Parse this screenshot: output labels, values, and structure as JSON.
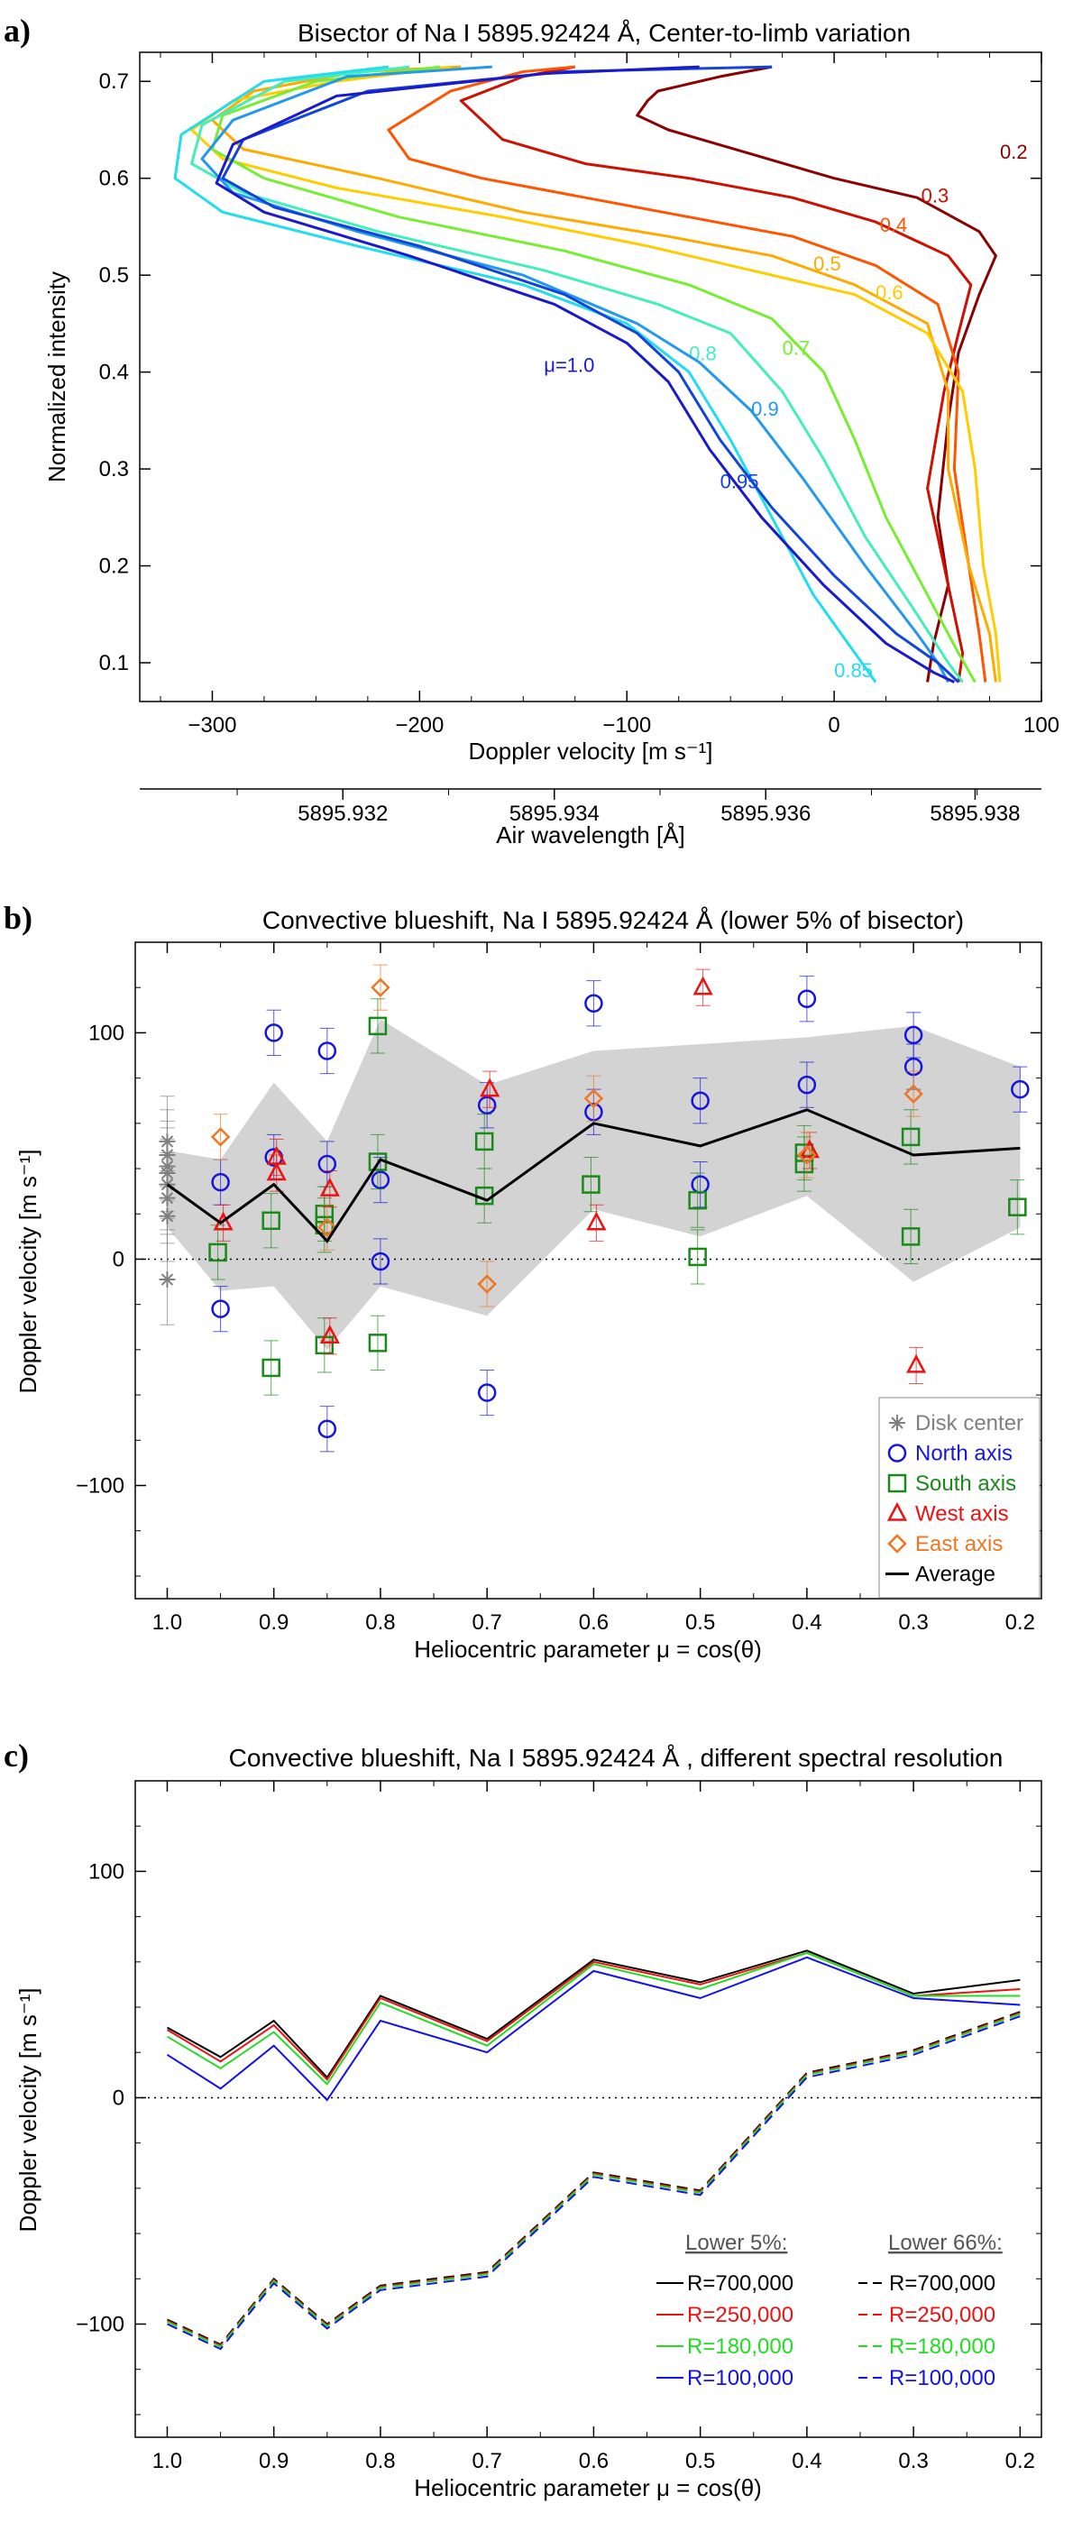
{
  "panels": {
    "a_label": "a)",
    "b_label": "b)",
    "c_label": "c)"
  },
  "chart_data": [
    {
      "id": "a",
      "type": "line",
      "title": "Bisector of Na I 5895.92424 Å, Center-to-limb variation",
      "xlabel": "Doppler velocity [m s⁻¹]",
      "ylabel": "Normalized intensity",
      "x2label": "Air wavelength [Å]",
      "xlim": [
        -335,
        100
      ],
      "ylim": [
        0.06,
        0.73
      ],
      "xticks": [
        -300,
        -200,
        -100,
        0,
        100
      ],
      "xtick_labels": [
        "−300",
        "−200",
        "−100",
        "0",
        "100"
      ],
      "yticks": [
        0.1,
        0.2,
        0.3,
        0.4,
        0.5,
        0.6,
        0.7
      ],
      "ytick_labels": [
        "0.1",
        "0.2",
        "0.3",
        "0.4",
        "0.5",
        "0.6",
        "0.7"
      ],
      "x2ticks": [
        -237,
        -135,
        -33,
        68
      ],
      "x2tick_labels": [
        "5895.932",
        "5895.934",
        "5895.936",
        "5895.938"
      ],
      "series": [
        {
          "name": "0.2",
          "color": "#8b0000",
          "label_at": [
            80,
            0.62
          ],
          "x": [
            -30,
            -55,
            -85,
            -90,
            -95,
            -80,
            -40,
            0,
            40,
            70,
            78,
            70,
            60,
            55,
            50,
            55,
            48,
            45
          ],
          "y": [
            0.715,
            0.705,
            0.69,
            0.68,
            0.665,
            0.65,
            0.625,
            0.6,
            0.58,
            0.545,
            0.52,
            0.48,
            0.42,
            0.35,
            0.25,
            0.18,
            0.12,
            0.08
          ]
        },
        {
          "name": "0.3",
          "color": "#cc1100",
          "label_at": [
            42,
            0.575
          ],
          "x": [
            -125,
            -150,
            -180,
            -160,
            -120,
            -70,
            -20,
            20,
            55,
            66,
            60,
            53,
            45,
            55,
            62,
            60
          ],
          "y": [
            0.715,
            0.705,
            0.68,
            0.64,
            0.615,
            0.6,
            0.58,
            0.555,
            0.52,
            0.49,
            0.44,
            0.38,
            0.28,
            0.18,
            0.11,
            0.08
          ]
        },
        {
          "name": "0.4",
          "color": "#ff5500",
          "label_at": [
            22,
            0.545
          ],
          "x": [
            -125,
            -150,
            -185,
            -215,
            -205,
            -170,
            -120,
            -70,
            -20,
            20,
            50,
            60,
            58,
            65,
            70,
            73
          ],
          "y": [
            0.715,
            0.71,
            0.69,
            0.65,
            0.62,
            0.6,
            0.58,
            0.56,
            0.54,
            0.51,
            0.47,
            0.4,
            0.3,
            0.2,
            0.13,
            0.08
          ]
        },
        {
          "name": "0.5",
          "color": "#ffaa00",
          "label_at": [
            -10,
            0.505
          ],
          "x": [
            -180,
            -230,
            -280,
            -300,
            -285,
            -220,
            -150,
            -80,
            -30,
            10,
            45,
            55,
            55,
            65,
            75,
            78
          ],
          "y": [
            0.715,
            0.71,
            0.69,
            0.66,
            0.63,
            0.6,
            0.565,
            0.54,
            0.52,
            0.49,
            0.45,
            0.38,
            0.3,
            0.2,
            0.13,
            0.08
          ]
        },
        {
          "name": "0.6",
          "color": "#ffcc00",
          "label_at": [
            20,
            0.475
          ],
          "x": [
            -185,
            -240,
            -290,
            -310,
            -295,
            -240,
            -160,
            -90,
            -40,
            10,
            45,
            62,
            68,
            72,
            78,
            80
          ],
          "y": [
            0.715,
            0.7,
            0.68,
            0.65,
            0.62,
            0.59,
            0.56,
            0.53,
            0.505,
            0.48,
            0.44,
            0.38,
            0.3,
            0.2,
            0.13,
            0.08
          ]
        },
        {
          "name": "0.7",
          "color": "#77ee33",
          "label_at": [
            -25,
            0.418
          ],
          "x": [
            -190,
            -250,
            -295,
            -300,
            -275,
            -210,
            -130,
            -70,
            -30,
            -5,
            10,
            25,
            45,
            60,
            68
          ],
          "y": [
            0.715,
            0.7,
            0.665,
            0.63,
            0.6,
            0.56,
            0.525,
            0.49,
            0.455,
            0.4,
            0.33,
            0.25,
            0.17,
            0.11,
            0.08
          ]
        },
        {
          "name": "0.8",
          "color": "#44eebb",
          "label_at": [
            -70,
            0.412
          ],
          "x": [
            -205,
            -265,
            -305,
            -310,
            -285,
            -220,
            -140,
            -85,
            -50,
            -25,
            -5,
            15,
            40,
            55,
            62
          ],
          "y": [
            0.715,
            0.7,
            0.655,
            0.615,
            0.585,
            0.545,
            0.505,
            0.47,
            0.44,
            0.38,
            0.31,
            0.23,
            0.15,
            0.1,
            0.08
          ]
        },
        {
          "name": "0.85",
          "color": "#22ddee",
          "label_at": [
            0,
            0.085
          ],
          "x": [
            -215,
            -275,
            -315,
            -318,
            -295,
            -230,
            -150,
            -100,
            -70,
            -50,
            -30,
            -10,
            10,
            20
          ],
          "y": [
            0.715,
            0.7,
            0.645,
            0.6,
            0.565,
            0.53,
            0.49,
            0.45,
            0.4,
            0.33,
            0.25,
            0.17,
            0.11,
            0.08
          ]
        },
        {
          "name": "0.9",
          "color": "#2299ee",
          "label_at": [
            -40,
            0.355
          ],
          "x": [
            -165,
            -235,
            -290,
            -305,
            -290,
            -230,
            -150,
            -95,
            -65,
            -40,
            -15,
            15,
            40,
            50,
            55
          ],
          "y": [
            0.715,
            0.705,
            0.66,
            0.62,
            0.585,
            0.545,
            0.5,
            0.45,
            0.41,
            0.36,
            0.29,
            0.2,
            0.13,
            0.1,
            0.08
          ]
        },
        {
          "name": "0.95",
          "color": "#1144dd",
          "label_at": [
            -55,
            0.28
          ],
          "x": [
            -30,
            -130,
            -225,
            -285,
            -295,
            -270,
            -200,
            -130,
            -95,
            -75,
            -55,
            -30,
            0,
            30,
            50,
            60
          ],
          "y": [
            0.715,
            0.71,
            0.69,
            0.64,
            0.6,
            0.57,
            0.53,
            0.48,
            0.44,
            0.4,
            0.33,
            0.26,
            0.19,
            0.13,
            0.1,
            0.08
          ]
        },
        {
          "name": "μ=1.0",
          "color": "#1a1acc",
          "label_at": [
            -140,
            0.4
          ],
          "x": [
            -65,
            -140,
            -240,
            -290,
            -298,
            -275,
            -205,
            -135,
            -100,
            -80,
            -60,
            -35,
            -5,
            25,
            48,
            58
          ],
          "y": [
            0.715,
            0.708,
            0.685,
            0.635,
            0.595,
            0.565,
            0.52,
            0.47,
            0.43,
            0.39,
            0.32,
            0.25,
            0.18,
            0.12,
            0.09,
            0.08
          ]
        }
      ]
    },
    {
      "id": "b",
      "type": "scatter",
      "title": "Convective blueshift, Na I 5895.92424 Å (lower 5% of bisector)",
      "xlabel": "Heliocentric parameter μ = cos(θ)",
      "ylabel": "Doppler velocity [m s⁻¹]",
      "xlim": [
        1.03,
        0.18
      ],
      "ylim": [
        -150,
        140
      ],
      "xticks": [
        1.0,
        0.9,
        0.8,
        0.7,
        0.6,
        0.5,
        0.4,
        0.3,
        0.2
      ],
      "xtick_labels": [
        "1.0",
        "0.9",
        "0.8",
        "0.7",
        "0.6",
        "0.5",
        "0.4",
        "0.3",
        "0.2"
      ],
      "yticks": [
        -100,
        0,
        100
      ],
      "ytick_labels": [
        "−100",
        "0",
        "100"
      ],
      "band": {
        "mu": [
          1.0,
          0.95,
          0.9,
          0.85,
          0.8,
          0.7,
          0.6,
          0.5,
          0.4,
          0.3,
          0.2
        ],
        "upper": [
          48,
          44,
          78,
          52,
          106,
          77,
          92,
          95,
          98,
          103,
          85
        ],
        "lower": [
          14,
          -14,
          -12,
          -40,
          -12,
          -25,
          22,
          10,
          28,
          -10,
          14
        ]
      },
      "average": {
        "name": "Average",
        "color": "#000000",
        "mu": [
          1.0,
          0.95,
          0.9,
          0.85,
          0.8,
          0.7,
          0.6,
          0.5,
          0.4,
          0.3,
          0.2
        ],
        "values": [
          33,
          16,
          33,
          8,
          44,
          26,
          60,
          50,
          66,
          46,
          49
        ]
      },
      "series": [
        {
          "name": "Disk center",
          "color": "#808080",
          "marker": "star",
          "mu": [
            1.0,
            1.0,
            1.0,
            1.0,
            1.0,
            1.0,
            1.0,
            1.0
          ],
          "values": [
            -9,
            19,
            27,
            33,
            38,
            41,
            46,
            52
          ],
          "err": 20
        },
        {
          "name": "North axis",
          "color": "#1515dd",
          "marker": "circle",
          "mu": [
            0.95,
            0.95,
            0.9,
            0.9,
            0.85,
            0.85,
            0.85,
            0.8,
            0.8,
            0.7,
            0.7,
            0.6,
            0.6,
            0.5,
            0.5,
            0.4,
            0.4,
            0.3,
            0.3,
            0.2
          ],
          "values": [
            -22,
            34,
            100,
            45,
            92,
            42,
            -75,
            35,
            -1,
            68,
            -59,
            113,
            65,
            70,
            33,
            77,
            115,
            99,
            85,
            75
          ],
          "err": 10
        },
        {
          "name": "South axis",
          "color": "#1a8a1a",
          "marker": "square",
          "mu": [
            0.95,
            0.9,
            0.9,
            0.85,
            0.85,
            0.85,
            0.8,
            0.8,
            0.8,
            0.7,
            0.7,
            0.6,
            0.5,
            0.5,
            0.4,
            0.4,
            0.3,
            0.3,
            0.2
          ],
          "values": [
            3,
            -48,
            17,
            -38,
            15,
            20,
            103,
            43,
            -37,
            52,
            28,
            33,
            26,
            1,
            42,
            47,
            54,
            10,
            23
          ],
          "err": 12
        },
        {
          "name": "West axis",
          "color": "#ee1111",
          "marker": "triangle",
          "mu": [
            0.95,
            0.9,
            0.9,
            0.85,
            0.85,
            0.7,
            0.6,
            0.5,
            0.4,
            0.3
          ],
          "values": [
            16,
            38,
            45,
            31,
            -34,
            75,
            16,
            120,
            48,
            -47
          ],
          "err": 8
        },
        {
          "name": "East axis",
          "color": "#ee7722",
          "marker": "diamond",
          "mu": [
            0.95,
            0.85,
            0.8,
            0.7,
            0.6,
            0.4,
            0.3
          ],
          "values": [
            54,
            14,
            120,
            -11,
            71,
            46,
            73
          ],
          "err": 10
        }
      ],
      "legend": [
        "Disk center",
        "North axis",
        "South axis",
        "West axis",
        "East axis",
        "Average"
      ]
    },
    {
      "id": "c",
      "type": "line",
      "title": "Convective blueshift, Na I 5895.92424 Å , different spectral resolution",
      "xlabel": "Heliocentric parameter μ = cos(θ)",
      "ylabel": "Doppler velocity [m s⁻¹]",
      "xlim": [
        1.03,
        0.18
      ],
      "ylim": [
        -150,
        140
      ],
      "xticks": [
        1.0,
        0.9,
        0.8,
        0.7,
        0.6,
        0.5,
        0.4,
        0.3,
        0.2
      ],
      "xtick_labels": [
        "1.0",
        "0.9",
        "0.8",
        "0.7",
        "0.6",
        "0.5",
        "0.4",
        "0.3",
        "0.2"
      ],
      "yticks": [
        -100,
        0,
        100
      ],
      "ytick_labels": [
        "−100",
        "0",
        "100"
      ],
      "mu": [
        1.0,
        0.95,
        0.9,
        0.85,
        0.8,
        0.7,
        0.6,
        0.5,
        0.4,
        0.3,
        0.2
      ],
      "legend_headers": [
        "Lower 5%:",
        "Lower 66%:"
      ],
      "series": [
        {
          "name": "R=700,000",
          "color": "#000000",
          "dash": false,
          "values": [
            31,
            18,
            34,
            9,
            45,
            26,
            61,
            51,
            65,
            46,
            52
          ]
        },
        {
          "name": "R=250,000",
          "color": "#ee1111",
          "dash": false,
          "values": [
            30,
            16,
            32,
            8,
            44,
            25,
            60,
            50,
            64,
            45,
            48
          ]
        },
        {
          "name": "R=180,000",
          "color": "#22dd22",
          "dash": false,
          "values": [
            27,
            13,
            29,
            6,
            42,
            23,
            59,
            48,
            64,
            45,
            45
          ]
        },
        {
          "name": "R=100,000",
          "color": "#1111ee",
          "dash": false,
          "values": [
            19,
            4,
            23,
            -1,
            34,
            20,
            56,
            44,
            62,
            44,
            41
          ]
        },
        {
          "name": "R=700,000",
          "color": "#000000",
          "dash": true,
          "values": [
            -98,
            -109,
            -80,
            -100,
            -83,
            -77,
            -33,
            -41,
            11,
            21,
            38
          ]
        },
        {
          "name": "R=250,000",
          "color": "#ee1111",
          "dash": true,
          "values": [
            -98.5,
            -109.5,
            -80.5,
            -100.5,
            -83.5,
            -77.5,
            -33.5,
            -41.5,
            10.5,
            20.5,
            37.5
          ]
        },
        {
          "name": "R=180,000",
          "color": "#22dd22",
          "dash": true,
          "values": [
            -99,
            -110,
            -81,
            -101,
            -84,
            -78,
            -34,
            -42,
            10,
            20,
            37
          ]
        },
        {
          "name": "R=100,000",
          "color": "#1111ee",
          "dash": true,
          "values": [
            -100,
            -111,
            -82,
            -102,
            -85,
            -79,
            -35,
            -43,
            9,
            19,
            36
          ]
        }
      ]
    }
  ]
}
